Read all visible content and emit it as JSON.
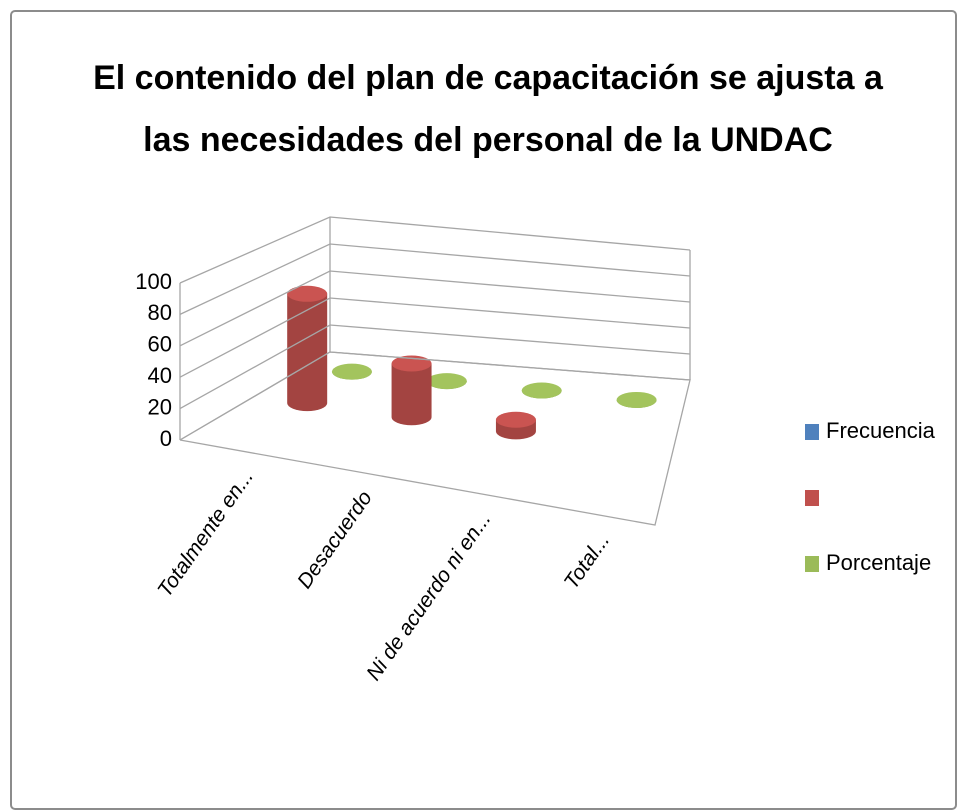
{
  "chart_data": {
    "type": "bar3d",
    "title": "El contenido del plan de capacitación se ajusta a las necesidades del personal de la UNDAC",
    "categories": [
      "Totalmente en...",
      "Desacuerdo",
      "Ni de acuerdo ni en...",
      "Total..."
    ],
    "series": [
      {
        "name": "Frecuencia",
        "color": "#4f81bd",
        "values": [
          null,
          null,
          null,
          null
        ]
      },
      {
        "name": null,
        "color": "#c0504d",
        "values": [
          75,
          37,
          8,
          null
        ]
      },
      {
        "name": "Porcentaje",
        "color": "#9bbb59",
        "values": [
          0,
          0,
          0,
          0
        ]
      }
    ],
    "ylim": [
      0,
      100
    ],
    "yticks": [
      0,
      20,
      40,
      60,
      80,
      100
    ],
    "grid": true,
    "legend": "right"
  }
}
